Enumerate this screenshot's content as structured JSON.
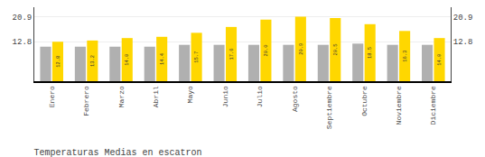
{
  "chart_data": {
    "type": "bar",
    "title": "Temperaturas Medias en escatron",
    "categories": [
      "Enero",
      "Febrero",
      "Marzo",
      "Abril",
      "Mayo",
      "Junio",
      "Julio",
      "Agosto",
      "Septiembre",
      "Octubre",
      "Noviembre",
      "Diciembre"
    ],
    "series": [
      {
        "color": "#B0B0B0",
        "values": [
          11.2,
          11.2,
          11.2,
          11.2,
          11.8,
          11.8,
          11.8,
          11.8,
          11.8,
          12.2,
          11.8,
          11.8
        ]
      },
      {
        "color": "#FFD700",
        "values": [
          12.8,
          13.2,
          14.0,
          14.4,
          15.7,
          17.6,
          20.0,
          20.9,
          20.5,
          18.5,
          16.3,
          14.0
        ],
        "data_labels": true,
        "value_labels": [
          "12.8",
          "13.2",
          "14.0",
          "14.4",
          "15.7",
          "17.6",
          "20.0",
          "20.9",
          "20.5",
          "18.5",
          "16.3",
          "14.0"
        ]
      }
    ],
    "ylim": [
      0,
      24.0
    ],
    "yticks": [
      12.8,
      20.9
    ],
    "grid": true
  }
}
